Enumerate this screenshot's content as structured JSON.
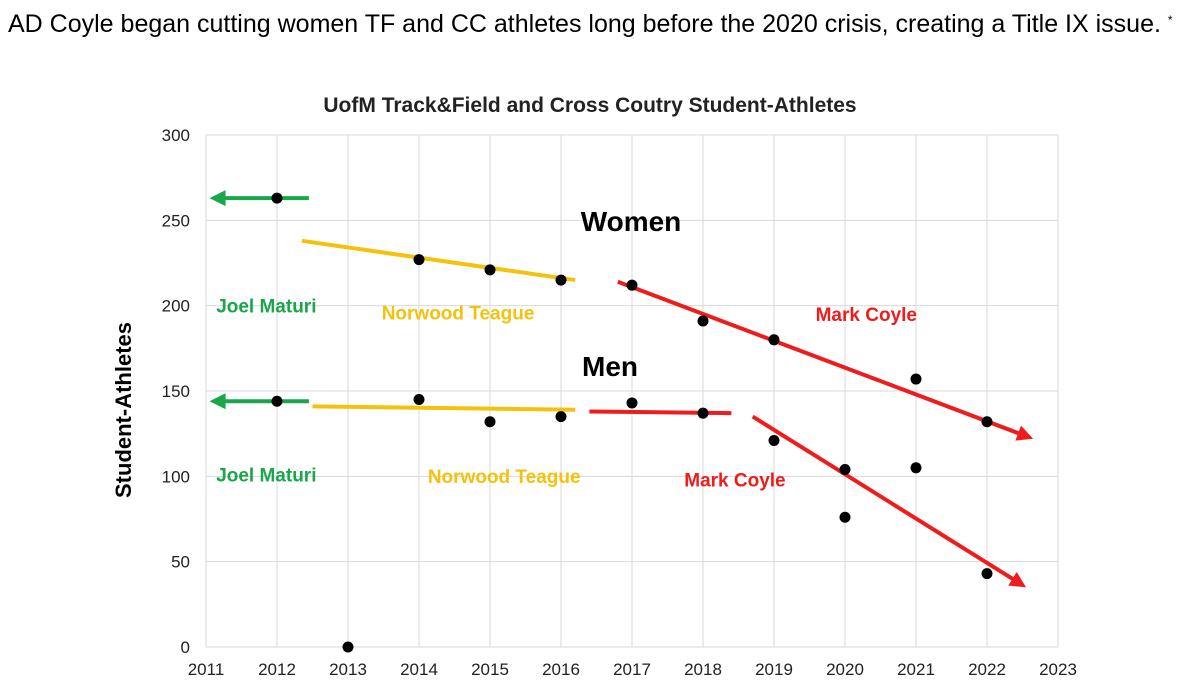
{
  "caption": {
    "text": "AD Coyle began cutting women TF and CC athletes long before the 2020 crisis, creating a Title IX issue.",
    "marker": "*"
  },
  "chart_data": {
    "type": "scatter",
    "title": "UofM Track&Field and Cross Coutry Student-Athletes",
    "xlabel": "",
    "ylabel": "Student-Athletes",
    "xlim": [
      2011,
      2023
    ],
    "ylim": [
      0,
      300
    ],
    "x_ticks": [
      "2011",
      "2012",
      "2013",
      "2014",
      "2015",
      "2016",
      "2017",
      "2018",
      "2019",
      "2020",
      "2021",
      "2022",
      "2023"
    ],
    "y_ticks": [
      "0",
      "50",
      "100",
      "150",
      "200",
      "250",
      "300"
    ],
    "grid": true,
    "marker_color": "#000000",
    "series": [
      {
        "name": "Women",
        "points": [
          [
            2012,
            263
          ],
          [
            2014,
            227
          ],
          [
            2015,
            221
          ],
          [
            2016,
            215
          ],
          [
            2017,
            212
          ],
          [
            2018,
            191
          ],
          [
            2019,
            180
          ],
          [
            2021,
            157
          ],
          [
            2022,
            132
          ]
        ]
      },
      {
        "name": "Men",
        "points": [
          [
            2012,
            144
          ],
          [
            2013,
            0
          ],
          [
            2014,
            145
          ],
          [
            2015,
            132
          ],
          [
            2016,
            135
          ],
          [
            2017,
            143
          ],
          [
            2018,
            137
          ],
          [
            2019,
            121
          ],
          [
            2020,
            104
          ],
          [
            2020,
            76
          ],
          [
            2021,
            105
          ],
          [
            2022,
            43
          ]
        ]
      }
    ],
    "trend_lines": [
      {
        "group": "Women",
        "era": "Joel Maturi",
        "color": "#1aa64a",
        "x": [
          2012.45,
          2011.05
        ],
        "y": [
          263,
          263
        ],
        "arrow": true
      },
      {
        "group": "Women",
        "era": "Norwood Teague",
        "color": "#f4c20d",
        "x": [
          2012.35,
          2016.2
        ],
        "y": [
          238,
          215
        ],
        "arrow": false
      },
      {
        "group": "Women",
        "era": "Mark Coyle",
        "color": "#ee1c1c",
        "x": [
          2016.8,
          2022.65
        ],
        "y": [
          214,
          122
        ],
        "arrow": true
      },
      {
        "group": "Men",
        "era": "Joel Maturi",
        "color": "#1aa64a",
        "x": [
          2012.45,
          2011.05
        ],
        "y": [
          144,
          144
        ],
        "arrow": true
      },
      {
        "group": "Men",
        "era": "Norwood Teague",
        "color": "#f4c20d",
        "x": [
          2012.5,
          2016.2
        ],
        "y": [
          141,
          139
        ],
        "arrow": false
      },
      {
        "group": "Men",
        "era": "Mark Coyle",
        "color": "#ee1c1c",
        "x": [
          2016.4,
          2018.4
        ],
        "y": [
          138,
          137
        ],
        "arrow": false
      },
      {
        "group": "Men",
        "era": "Mark Coyle",
        "color": "#ee1c1c",
        "x": [
          2018.7,
          2022.55
        ],
        "y": [
          135,
          35
        ],
        "arrow": true
      }
    ],
    "group_labels": {
      "women": "Women",
      "men": "Men"
    },
    "annotations": [
      {
        "text": "Joel Maturi",
        "color": "#1aa64a",
        "x": 2011.85,
        "y": 196
      },
      {
        "text": "Norwood Teague",
        "color": "#f4c20d",
        "x": 2014.55,
        "y": 192
      },
      {
        "text": "Mark Coyle",
        "color": "#ee1c1c",
        "x": 2020.3,
        "y": 191
      },
      {
        "text": "Joel Maturi",
        "color": "#1aa64a",
        "x": 2011.85,
        "y": 97
      },
      {
        "text": "Norwood Teague",
        "color": "#f4c20d",
        "x": 2015.2,
        "y": 96
      },
      {
        "text": "Mark Coyle",
        "color": "#ee1c1c",
        "x": 2018.45,
        "y": 94
      }
    ]
  }
}
